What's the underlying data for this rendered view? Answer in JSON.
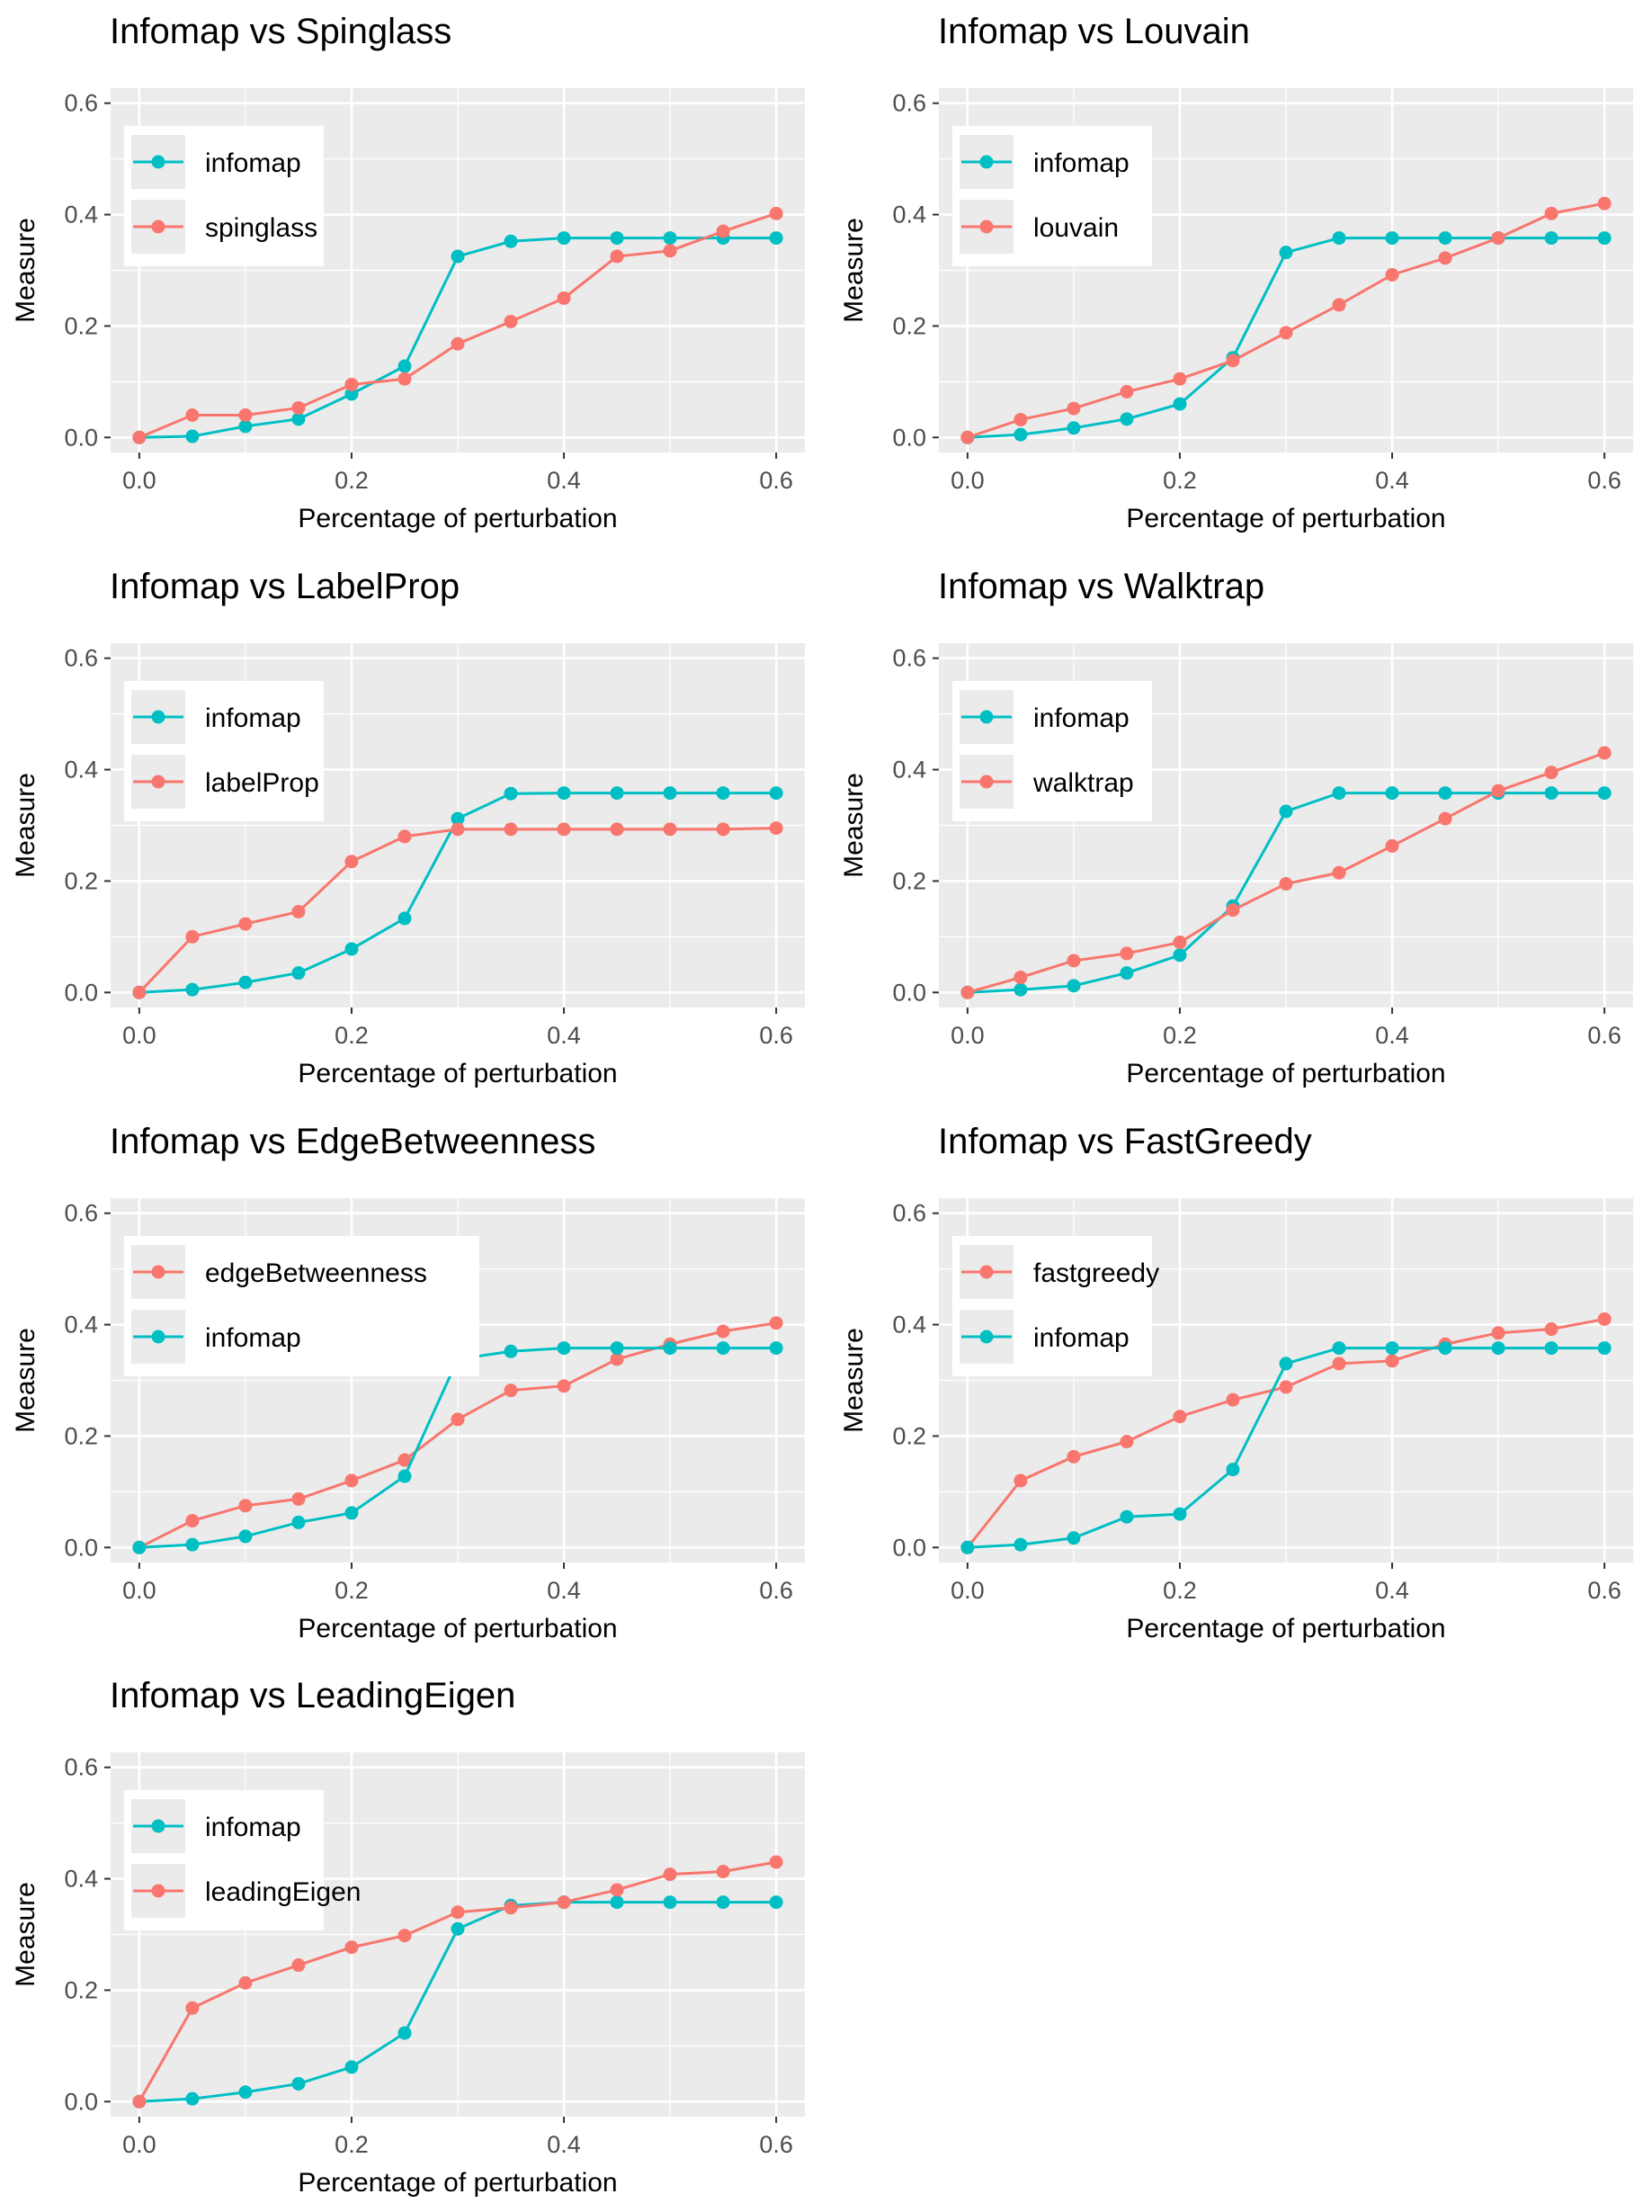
{
  "colors": {
    "infomap": "#00BFC4",
    "other": "#F8766D",
    "panel_background": "#EBEBEB",
    "grid": "#FFFFFF"
  },
  "chart_data": [
    {
      "type": "line",
      "title": "Infomap vs Spinglass",
      "xlabel": "Percentage of perturbation",
      "ylabel": "Measure",
      "xlim": [
        0,
        0.6
      ],
      "ylim": [
        0,
        0.6
      ],
      "x_ticks": [
        "0.0",
        "0.2",
        "0.4",
        "0.6"
      ],
      "y_ticks": [
        "0.0",
        "0.2",
        "0.4",
        "0.6"
      ],
      "legend_position": "top-left",
      "x": [
        0,
        0.05,
        0.1,
        0.15,
        0.2,
        0.25,
        0.3,
        0.35,
        0.4,
        0.45,
        0.5,
        0.55,
        0.6
      ],
      "series": [
        {
          "name": "infomap",
          "color": "#00BFC4",
          "values": [
            0.0,
            0.002,
            0.02,
            0.033,
            0.078,
            0.128,
            0.325,
            0.352,
            0.358,
            0.358,
            0.358,
            0.358,
            0.358
          ]
        },
        {
          "name": "spinglass",
          "color": "#F8766D",
          "values": [
            0.0,
            0.04,
            0.04,
            0.053,
            0.095,
            0.105,
            0.168,
            0.208,
            0.25,
            0.325,
            0.335,
            0.37,
            0.402
          ]
        }
      ]
    },
    {
      "type": "line",
      "title": "Infomap vs Louvain",
      "xlabel": "Percentage of perturbation",
      "ylabel": "Measure",
      "xlim": [
        0,
        0.6
      ],
      "ylim": [
        0,
        0.6
      ],
      "x_ticks": [
        "0.0",
        "0.2",
        "0.4",
        "0.6"
      ],
      "y_ticks": [
        "0.0",
        "0.2",
        "0.4",
        "0.6"
      ],
      "legend_position": "top-left",
      "x": [
        0,
        0.05,
        0.1,
        0.15,
        0.2,
        0.25,
        0.3,
        0.35,
        0.4,
        0.45,
        0.5,
        0.55,
        0.6
      ],
      "series": [
        {
          "name": "infomap",
          "color": "#00BFC4",
          "values": [
            0.0,
            0.005,
            0.017,
            0.033,
            0.06,
            0.143,
            0.332,
            0.358,
            0.358,
            0.358,
            0.358,
            0.358,
            0.358
          ]
        },
        {
          "name": "louvain",
          "color": "#F8766D",
          "values": [
            0.0,
            0.032,
            0.052,
            0.082,
            0.105,
            0.138,
            0.188,
            0.238,
            0.292,
            0.322,
            0.358,
            0.402,
            0.42
          ]
        }
      ]
    },
    {
      "type": "line",
      "title": "Infomap vs LabelProp",
      "xlabel": "Percentage of perturbation",
      "ylabel": "Measure",
      "xlim": [
        0,
        0.6
      ],
      "ylim": [
        0,
        0.6
      ],
      "x_ticks": [
        "0.0",
        "0.2",
        "0.4",
        "0.6"
      ],
      "y_ticks": [
        "0.0",
        "0.2",
        "0.4",
        "0.6"
      ],
      "legend_position": "top-left",
      "x": [
        0,
        0.05,
        0.1,
        0.15,
        0.2,
        0.25,
        0.3,
        0.35,
        0.4,
        0.45,
        0.5,
        0.55,
        0.6
      ],
      "series": [
        {
          "name": "infomap",
          "color": "#00BFC4",
          "values": [
            0.0,
            0.005,
            0.018,
            0.035,
            0.078,
            0.133,
            0.312,
            0.357,
            0.358,
            0.358,
            0.358,
            0.358,
            0.358
          ]
        },
        {
          "name": "labelProp",
          "color": "#F8766D",
          "values": [
            0.0,
            0.1,
            0.123,
            0.145,
            0.235,
            0.28,
            0.293,
            0.293,
            0.293,
            0.293,
            0.293,
            0.293,
            0.295
          ]
        }
      ]
    },
    {
      "type": "line",
      "title": "Infomap vs Walktrap",
      "xlabel": "Percentage of perturbation",
      "ylabel": "Measure",
      "xlim": [
        0,
        0.6
      ],
      "ylim": [
        0,
        0.6
      ],
      "x_ticks": [
        "0.0",
        "0.2",
        "0.4",
        "0.6"
      ],
      "y_ticks": [
        "0.0",
        "0.2",
        "0.4",
        "0.6"
      ],
      "legend_position": "top-left",
      "x": [
        0,
        0.05,
        0.1,
        0.15,
        0.2,
        0.25,
        0.3,
        0.35,
        0.4,
        0.45,
        0.5,
        0.55,
        0.6
      ],
      "series": [
        {
          "name": "infomap",
          "color": "#00BFC4",
          "values": [
            0.0,
            0.005,
            0.012,
            0.035,
            0.067,
            0.155,
            0.325,
            0.358,
            0.358,
            0.358,
            0.358,
            0.358,
            0.358
          ]
        },
        {
          "name": "walktrap",
          "color": "#F8766D",
          "values": [
            0.0,
            0.027,
            0.057,
            0.07,
            0.09,
            0.148,
            0.195,
            0.215,
            0.263,
            0.312,
            0.362,
            0.395,
            0.43
          ]
        }
      ]
    },
    {
      "type": "line",
      "title": "Infomap vs EdgeBetweenness",
      "xlabel": "Percentage of perturbation",
      "ylabel": "Measure",
      "xlim": [
        0,
        0.6
      ],
      "ylim": [
        0,
        0.6
      ],
      "x_ticks": [
        "0.0",
        "0.2",
        "0.4",
        "0.6"
      ],
      "y_ticks": [
        "0.0",
        "0.2",
        "0.4",
        "0.6"
      ],
      "legend_position": "top-left",
      "x": [
        0,
        0.05,
        0.1,
        0.15,
        0.2,
        0.25,
        0.3,
        0.35,
        0.4,
        0.45,
        0.5,
        0.55,
        0.6
      ],
      "series": [
        {
          "name": "edgeBetweenness",
          "color": "#F8766D",
          "values": [
            0.0,
            0.048,
            0.075,
            0.087,
            0.12,
            0.157,
            0.23,
            0.282,
            0.29,
            0.338,
            0.365,
            0.388,
            0.403
          ]
        },
        {
          "name": "infomap",
          "color": "#00BFC4",
          "values": [
            0.0,
            0.005,
            0.02,
            0.045,
            0.062,
            0.128,
            0.338,
            0.352,
            0.358,
            0.358,
            0.358,
            0.358,
            0.358
          ]
        }
      ]
    },
    {
      "type": "line",
      "title": "Infomap vs FastGreedy",
      "xlabel": "Percentage of perturbation",
      "ylabel": "Measure",
      "xlim": [
        0,
        0.6
      ],
      "ylim": [
        0,
        0.6
      ],
      "x_ticks": [
        "0.0",
        "0.2",
        "0.4",
        "0.6"
      ],
      "y_ticks": [
        "0.0",
        "0.2",
        "0.4",
        "0.6"
      ],
      "legend_position": "top-left",
      "x": [
        0,
        0.05,
        0.1,
        0.15,
        0.2,
        0.25,
        0.3,
        0.35,
        0.4,
        0.45,
        0.5,
        0.55,
        0.6
      ],
      "series": [
        {
          "name": "fastgreedy",
          "color": "#F8766D",
          "values": [
            0.0,
            0.12,
            0.163,
            0.19,
            0.235,
            0.265,
            0.288,
            0.33,
            0.335,
            0.365,
            0.385,
            0.392,
            0.41
          ]
        },
        {
          "name": "infomap",
          "color": "#00BFC4",
          "values": [
            0.0,
            0.005,
            0.017,
            0.055,
            0.06,
            0.14,
            0.33,
            0.358,
            0.358,
            0.358,
            0.358,
            0.358,
            0.358
          ]
        }
      ]
    },
    {
      "type": "line",
      "title": "Infomap vs LeadingEigen",
      "xlabel": "Percentage of perturbation",
      "ylabel": "Measure",
      "xlim": [
        0,
        0.6
      ],
      "ylim": [
        0,
        0.6
      ],
      "x_ticks": [
        "0.0",
        "0.2",
        "0.4",
        "0.6"
      ],
      "y_ticks": [
        "0.0",
        "0.2",
        "0.4",
        "0.6"
      ],
      "legend_position": "top-left",
      "x": [
        0,
        0.05,
        0.1,
        0.15,
        0.2,
        0.25,
        0.3,
        0.35,
        0.4,
        0.45,
        0.5,
        0.55,
        0.6
      ],
      "series": [
        {
          "name": "infomap",
          "color": "#00BFC4",
          "values": [
            0.0,
            0.005,
            0.017,
            0.032,
            0.062,
            0.123,
            0.31,
            0.352,
            0.358,
            0.358,
            0.358,
            0.358,
            0.358
          ]
        },
        {
          "name": "leadingEigen",
          "color": "#F8766D",
          "values": [
            0.0,
            0.168,
            0.213,
            0.245,
            0.277,
            0.298,
            0.34,
            0.348,
            0.358,
            0.38,
            0.408,
            0.413,
            0.43
          ]
        }
      ]
    }
  ]
}
